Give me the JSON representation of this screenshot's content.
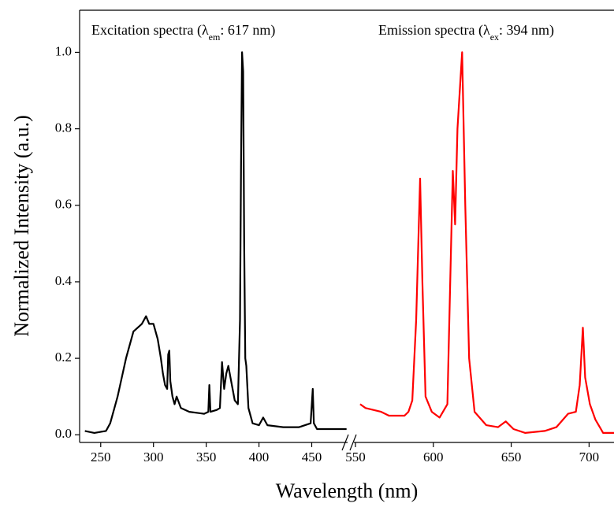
{
  "chart_data": {
    "type": "line",
    "xlabel": "Wavelength (nm)",
    "ylabel": "Normalized Intensity (a.u.)",
    "ylim": [
      -0.02,
      1.11
    ],
    "yticks": [
      {
        "value": 0,
        "label": "0.0"
      },
      0.2,
      0.4,
      0.6,
      0.8,
      {
        "value": 1,
        "label": "1.0"
      }
    ],
    "annotations": [
      {
        "text": "Excitation spectra (λ",
        "sub": "em",
        "rest": ": 617 nm)"
      },
      {
        "text": "Emission spectra (λ",
        "sub": "ex",
        "rest": ": 394 nm)"
      }
    ],
    "panels": [
      {
        "xlim": [
          230,
          484
        ],
        "xticks": [
          250,
          300,
          350,
          400,
          450
        ],
        "color": "#000000",
        "x": [
          235,
          244,
          255,
          259,
          266,
          274,
          281,
          289,
          293,
          296,
          300,
          304,
          307,
          309,
          311,
          313,
          314,
          315,
          316,
          318,
          320,
          322,
          326,
          334,
          348,
          352,
          353,
          354,
          360,
          363,
          365,
          367,
          369,
          371,
          373,
          375,
          377,
          380,
          382,
          383,
          384,
          385,
          386,
          387,
          388,
          390,
          394,
          400,
          404,
          408,
          423,
          438,
          449,
          451,
          452,
          455,
          470,
          483
        ],
        "values": [
          0.01,
          0.005,
          0.01,
          0.03,
          0.1,
          0.2,
          0.27,
          0.29,
          0.31,
          0.29,
          0.29,
          0.25,
          0.2,
          0.16,
          0.13,
          0.12,
          0.21,
          0.22,
          0.14,
          0.1,
          0.08,
          0.1,
          0.07,
          0.06,
          0.055,
          0.06,
          0.13,
          0.06,
          0.065,
          0.07,
          0.19,
          0.12,
          0.16,
          0.18,
          0.15,
          0.12,
          0.09,
          0.08,
          0.3,
          0.7,
          1.0,
          0.95,
          0.5,
          0.2,
          0.18,
          0.07,
          0.03,
          0.025,
          0.045,
          0.025,
          0.02,
          0.02,
          0.03,
          0.12,
          0.03,
          0.015,
          0.015,
          0.015
        ]
      },
      {
        "xlim": [
          549,
          716
        ],
        "xticks": [
          550,
          600,
          650,
          700
        ],
        "color": "#ff0000",
        "x": [
          553,
          556.5,
          561.5,
          566.5,
          571.5,
          581.5,
          584,
          586.5,
          589,
          591.5,
          593,
          595,
          599,
          604,
          609,
          612.5,
          614,
          615.5,
          618.5,
          620.5,
          623,
          626.5,
          634,
          641.5,
          646.5,
          651.5,
          659,
          671.5,
          679,
          686.5,
          691.5,
          694,
          696,
          697.5,
          700.5,
          704,
          709,
          716
        ],
        "values": [
          0.08,
          0.07,
          0.065,
          0.06,
          0.05,
          0.05,
          0.06,
          0.09,
          0.3,
          0.67,
          0.4,
          0.1,
          0.06,
          0.045,
          0.08,
          0.69,
          0.55,
          0.8,
          1.0,
          0.6,
          0.2,
          0.06,
          0.025,
          0.02,
          0.035,
          0.015,
          0.005,
          0.01,
          0.02,
          0.055,
          0.06,
          0.13,
          0.28,
          0.15,
          0.08,
          0.04,
          0.005,
          0.005
        ]
      }
    ]
  }
}
